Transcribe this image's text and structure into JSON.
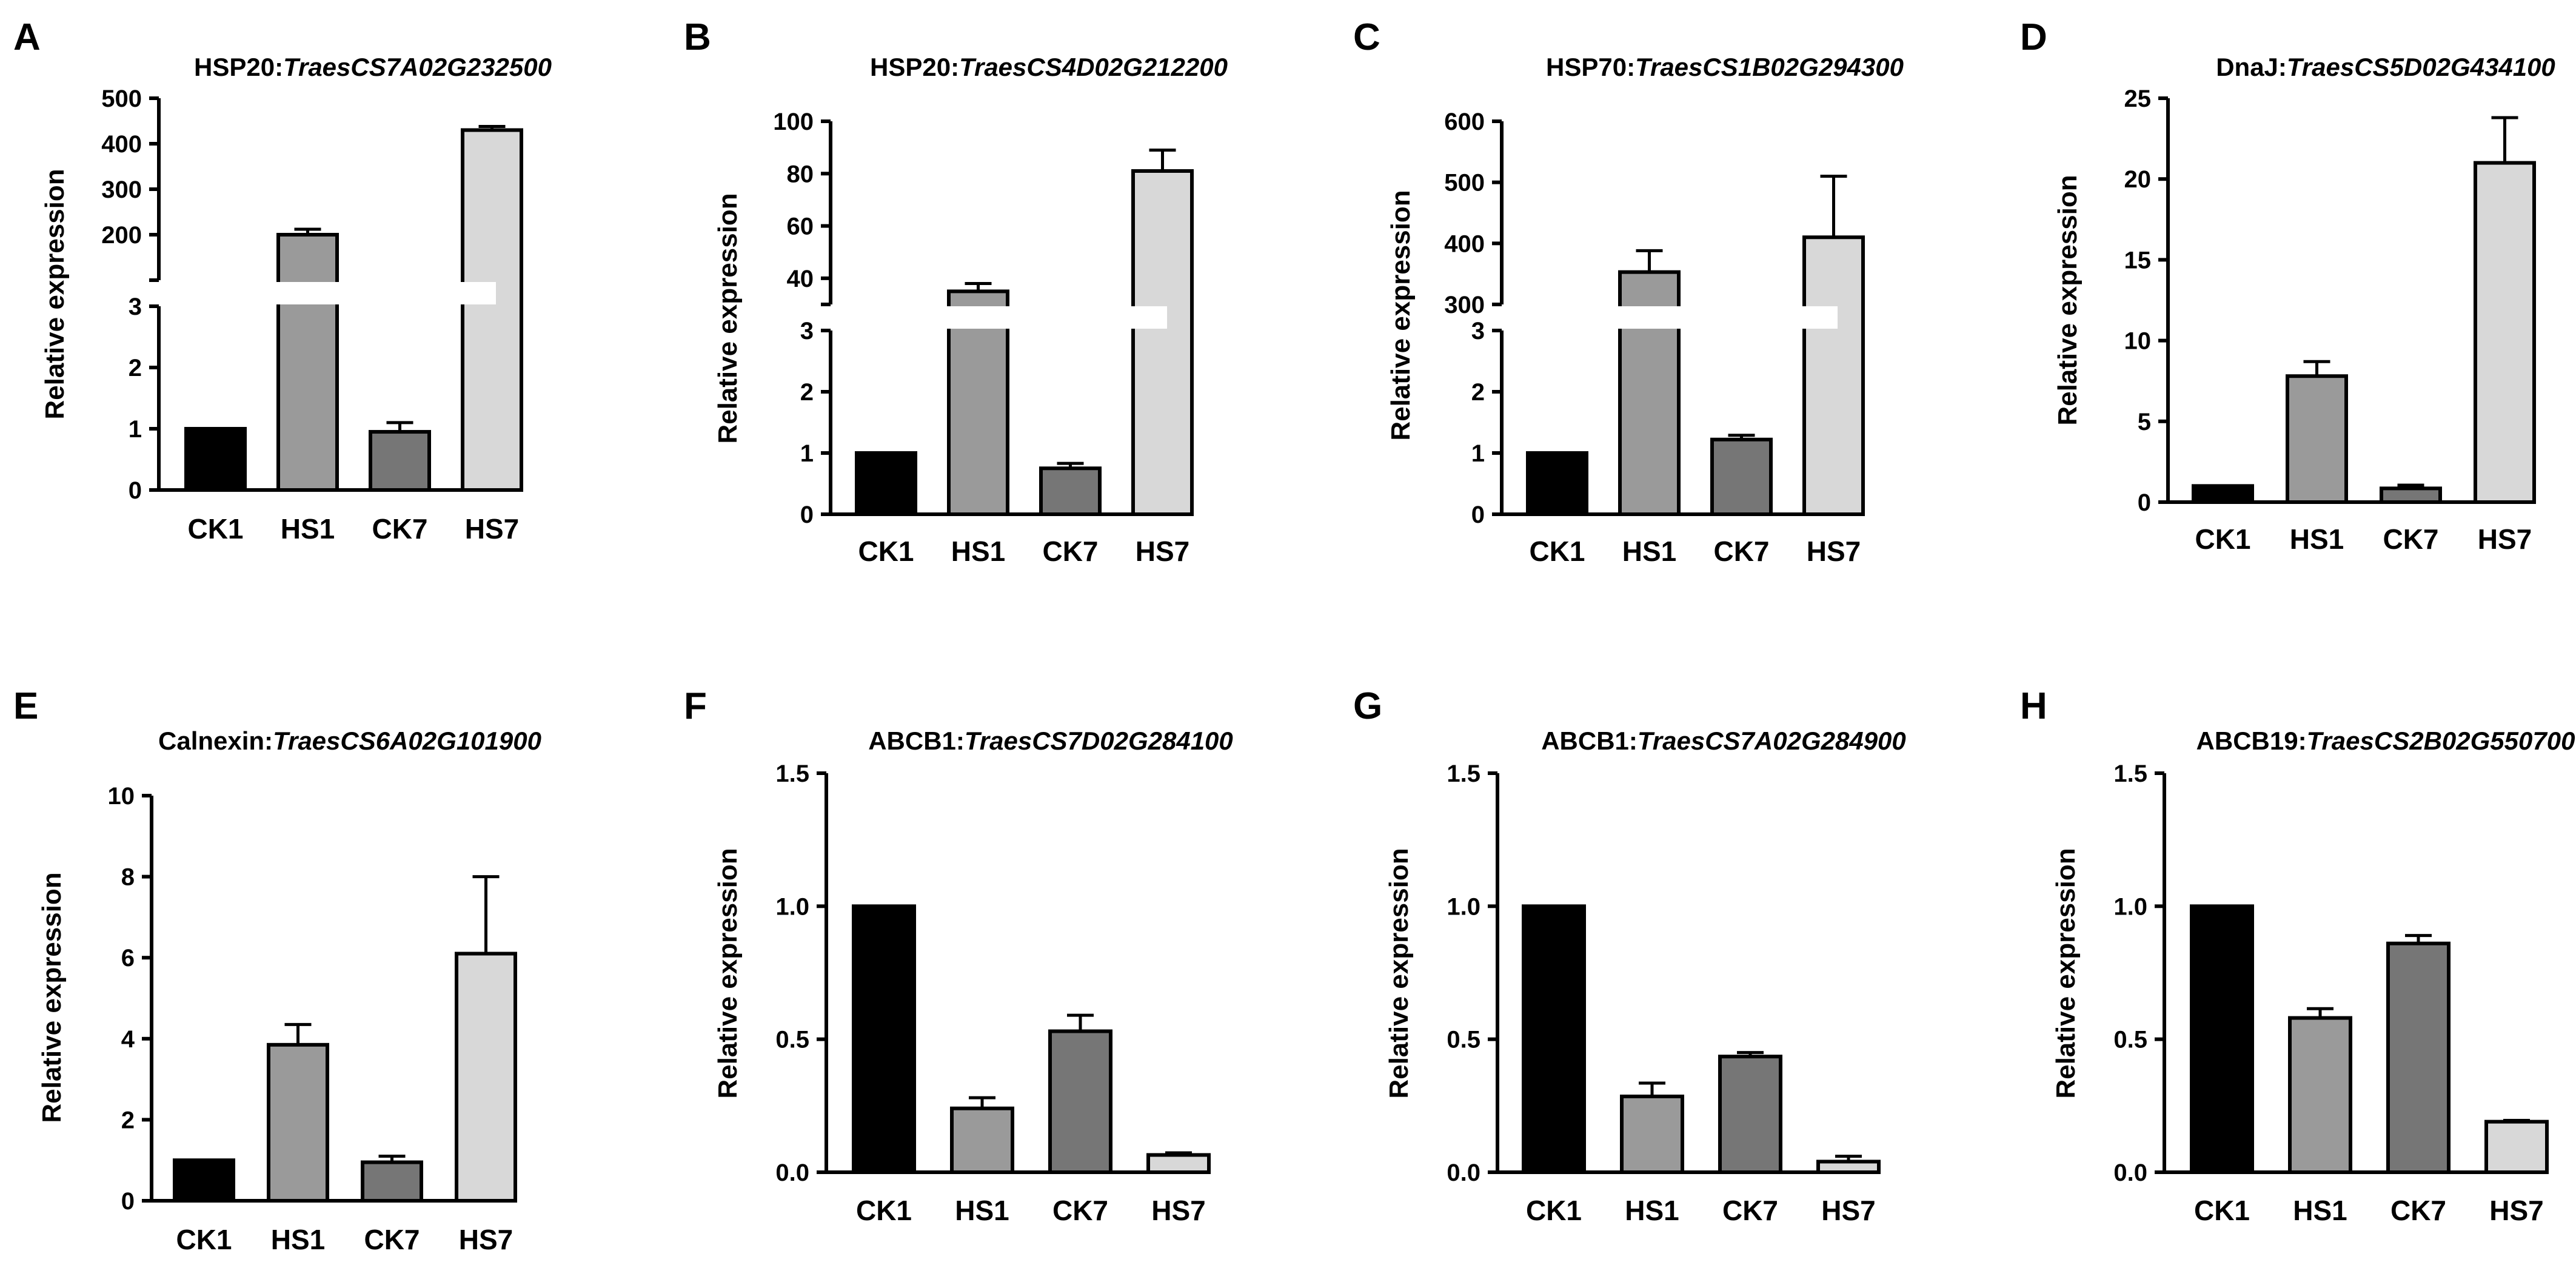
{
  "chart_data": [
    {
      "panel": "A",
      "type": "bar",
      "title": {
        "prefix": "HSP20:",
        "gene": "TraesCS7A02G232500"
      },
      "ylabel": "Relative expression",
      "categories": [
        "CK1",
        "HS1",
        "CK7",
        "HS7"
      ],
      "values": [
        1,
        200,
        0.95,
        430
      ],
      "errors": [
        0,
        12,
        0.15,
        8
      ],
      "colors": [
        "#000000",
        "#9a9a9a",
        "#767676",
        "#d8d8d8"
      ],
      "axis_break": {
        "low": [
          0,
          3
        ],
        "high": [
          100,
          500
        ]
      },
      "yticks_low": [
        0,
        1,
        2,
        3
      ],
      "yticks_high": [
        200,
        300,
        400,
        500
      ]
    },
    {
      "panel": "B",
      "type": "bar",
      "title": {
        "prefix": "HSP20:",
        "gene": "TraesCS4D02G212200"
      },
      "ylabel": "Relative expression",
      "categories": [
        "CK1",
        "HS1",
        "CK7",
        "HS7"
      ],
      "values": [
        1,
        35,
        0.75,
        81
      ],
      "errors": [
        0,
        3,
        0.08,
        8
      ],
      "colors": [
        "#000000",
        "#9a9a9a",
        "#767676",
        "#d8d8d8"
      ],
      "axis_break": {
        "low": [
          0,
          3
        ],
        "high": [
          30,
          100
        ]
      },
      "yticks_low": [
        0,
        1,
        2,
        3
      ],
      "yticks_high": [
        40,
        60,
        80,
        100
      ]
    },
    {
      "panel": "C",
      "type": "bar",
      "title": {
        "prefix": "HSP70:",
        "gene": "TraesCS1B02G294300"
      },
      "ylabel": "Relative expression",
      "categories": [
        "CK1",
        "HS1",
        "CK7",
        "HS7"
      ],
      "values": [
        1,
        353,
        1.22,
        410
      ],
      "errors": [
        0,
        35,
        0.07,
        100
      ],
      "colors": [
        "#000000",
        "#9a9a9a",
        "#767676",
        "#d8d8d8"
      ],
      "axis_break": {
        "low": [
          0,
          3
        ],
        "high": [
          300,
          600
        ]
      },
      "yticks_low": [
        0,
        1,
        2,
        3
      ],
      "yticks_high": [
        300,
        400,
        500,
        600
      ]
    },
    {
      "panel": "D",
      "type": "bar",
      "title": {
        "prefix": "DnaJ:",
        "gene": "TraesCS5D02G434100"
      },
      "ylabel": "Relative expression",
      "categories": [
        "CK1",
        "HS1",
        "CK7",
        "HS7"
      ],
      "values": [
        1,
        7.8,
        0.85,
        21
      ],
      "errors": [
        0,
        0.9,
        0.2,
        2.8
      ],
      "colors": [
        "#000000",
        "#9a9a9a",
        "#767676",
        "#d8d8d8"
      ],
      "ylim": [
        0,
        25
      ],
      "yticks": [
        0,
        5,
        10,
        15,
        20,
        25
      ]
    },
    {
      "panel": "E",
      "type": "bar",
      "title": {
        "prefix": "Calnexin:",
        "gene": "TraesCS6A02G101900"
      },
      "ylabel": "Relative expression",
      "categories": [
        "CK1",
        "HS1",
        "CK7",
        "HS7"
      ],
      "values": [
        1,
        3.85,
        0.95,
        6.1
      ],
      "errors": [
        0,
        0.5,
        0.15,
        1.9
      ],
      "colors": [
        "#000000",
        "#9a9a9a",
        "#767676",
        "#d8d8d8"
      ],
      "ylim": [
        0,
        10
      ],
      "yticks": [
        0,
        2,
        4,
        6,
        8,
        10
      ]
    },
    {
      "panel": "F",
      "type": "bar",
      "title": {
        "prefix": "ABCB1:",
        "gene": "TraesCS7D02G284100"
      },
      "ylabel": "Relative expression",
      "categories": [
        "CK1",
        "HS1",
        "CK7",
        "HS7"
      ],
      "values": [
        1,
        0.24,
        0.53,
        0.065
      ],
      "errors": [
        0,
        0.04,
        0.06,
        0.008
      ],
      "colors": [
        "#000000",
        "#9a9a9a",
        "#767676",
        "#d8d8d8"
      ],
      "ylim": [
        0,
        1.5
      ],
      "yticks": [
        "0.0",
        "0.5",
        "1.0",
        "1.5"
      ]
    },
    {
      "panel": "G",
      "type": "bar",
      "title": {
        "prefix": "ABCB1:",
        "gene": "TraesCS7A02G284900"
      },
      "ylabel": "Relative expression",
      "categories": [
        "CK1",
        "HS1",
        "CK7",
        "HS7"
      ],
      "values": [
        1,
        0.285,
        0.435,
        0.04
      ],
      "errors": [
        0,
        0.05,
        0.015,
        0.02
      ],
      "colors": [
        "#000000",
        "#9a9a9a",
        "#767676",
        "#d8d8d8"
      ],
      "ylim": [
        0,
        1.5
      ],
      "yticks": [
        "0.0",
        "0.5",
        "1.0",
        "1.5"
      ]
    },
    {
      "panel": "H",
      "type": "bar",
      "title": {
        "prefix": "ABCB19:",
        "gene": "TraesCS2B02G550700"
      },
      "ylabel": "Relative expression",
      "categories": [
        "CK1",
        "HS1",
        "CK7",
        "HS7"
      ],
      "values": [
        1,
        0.58,
        0.86,
        0.19
      ],
      "errors": [
        0,
        0.035,
        0.03,
        0.005
      ],
      "colors": [
        "#000000",
        "#9a9a9a",
        "#767676",
        "#d8d8d8"
      ],
      "ylim": [
        0,
        1.5
      ],
      "yticks": [
        "0.0",
        "0.5",
        "1.0",
        "1.5"
      ]
    }
  ]
}
